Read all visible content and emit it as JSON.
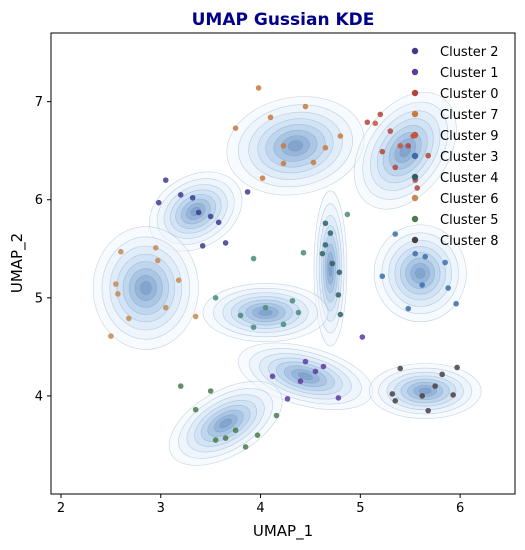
{
  "chart_data": {
    "type": "scatter",
    "title": "UMAP Gussian KDE",
    "xlabel": "UMAP_1",
    "ylabel": "UMAP_2",
    "xlim": [
      1.9,
      6.55
    ],
    "ylim": [
      3.0,
      7.7
    ],
    "xticks": [
      2,
      3,
      4,
      5,
      6
    ],
    "yticks": [
      4,
      5,
      6,
      7
    ],
    "legend_position": "top-right",
    "background_style": "gaussian kde density contours (blues)",
    "series": [
      {
        "name": "Cluster 2",
        "color": "#3d3b8e",
        "points": [
          [
            3.05,
            6.2
          ],
          [
            2.98,
            5.97
          ],
          [
            3.32,
            6.02
          ],
          [
            3.38,
            5.87
          ],
          [
            3.58,
            5.77
          ],
          [
            3.65,
            5.56
          ],
          [
            3.42,
            5.53
          ],
          [
            3.87,
            6.08
          ],
          [
            3.5,
            5.83
          ],
          [
            3.2,
            6.05
          ]
        ]
      },
      {
        "name": "Cluster 1",
        "color": "#5c3a9e",
        "points": [
          [
            4.12,
            4.2
          ],
          [
            4.45,
            4.35
          ],
          [
            4.63,
            4.3
          ],
          [
            4.78,
            3.98
          ],
          [
            5.02,
            4.6
          ],
          [
            4.27,
            3.97
          ],
          [
            4.4,
            4.15
          ],
          [
            4.55,
            4.25
          ]
        ]
      },
      {
        "name": "Cluster 0",
        "color": "#b2453a",
        "points": [
          [
            5.2,
            6.87
          ],
          [
            5.07,
            6.79
          ],
          [
            5.22,
            6.49
          ],
          [
            5.35,
            6.33
          ],
          [
            5.53,
            6.65
          ],
          [
            5.55,
            6.2
          ],
          [
            5.57,
            6.12
          ],
          [
            5.68,
            6.45
          ],
          [
            5.48,
            6.55
          ],
          [
            5.3,
            6.7
          ]
        ]
      },
      {
        "name": "Cluster 7",
        "color": "#c77a3e",
        "points": [
          [
            3.98,
            7.14
          ],
          [
            3.75,
            6.73
          ],
          [
            4.1,
            6.84
          ],
          [
            4.45,
            6.95
          ],
          [
            4.23,
            6.55
          ],
          [
            4.23,
            6.37
          ],
          [
            4.53,
            6.38
          ],
          [
            4.65,
            6.53
          ],
          [
            4.8,
            6.65
          ],
          [
            4.02,
            6.22
          ]
        ]
      },
      {
        "name": "Cluster 9",
        "color": "#c8553b",
        "points": [
          [
            5.15,
            6.78
          ],
          [
            5.55,
            6.45
          ],
          [
            5.4,
            6.55
          ]
        ]
      },
      {
        "name": "Cluster 3",
        "color": "#3b6ea8",
        "points": [
          [
            5.35,
            5.65
          ],
          [
            5.22,
            5.22
          ],
          [
            5.48,
            4.89
          ],
          [
            5.62,
            5.13
          ],
          [
            5.65,
            5.42
          ],
          [
            5.85,
            5.36
          ],
          [
            5.96,
            4.94
          ],
          [
            5.88,
            5.1
          ],
          [
            5.55,
            5.45
          ]
        ]
      },
      {
        "name": "Cluster 4",
        "color": "#2f5f64",
        "points": [
          [
            4.65,
            5.76
          ],
          [
            4.7,
            5.66
          ],
          [
            4.65,
            5.54
          ],
          [
            4.79,
            5.26
          ],
          [
            4.78,
            5.03
          ],
          [
            4.8,
            4.83
          ],
          [
            4.62,
            5.45
          ],
          [
            4.72,
            5.35
          ]
        ]
      },
      {
        "name": "Cluster 6",
        "color": "#c48a50",
        "points": [
          [
            2.6,
            5.47
          ],
          [
            2.95,
            5.51
          ],
          [
            2.97,
            5.38
          ],
          [
            3.18,
            5.18
          ],
          [
            2.55,
            5.14
          ],
          [
            2.57,
            5.04
          ],
          [
            2.68,
            4.79
          ],
          [
            2.5,
            4.61
          ],
          [
            3.05,
            4.9
          ],
          [
            3.35,
            4.81
          ]
        ]
      },
      {
        "name": "Cluster 5",
        "color": "#4a7a4a",
        "points": [
          [
            3.2,
            4.1
          ],
          [
            3.35,
            3.86
          ],
          [
            3.55,
            3.55
          ],
          [
            3.65,
            3.57
          ],
          [
            3.97,
            3.6
          ],
          [
            3.85,
            3.48
          ],
          [
            4.16,
            3.8
          ],
          [
            3.5,
            4.05
          ],
          [
            3.75,
            3.65
          ]
        ]
      },
      {
        "name": "Cluster 8",
        "color": "#4a403f",
        "points": [
          [
            5.32,
            4.02
          ],
          [
            5.35,
            3.95
          ],
          [
            5.68,
            3.85
          ],
          [
            5.62,
            4.0
          ],
          [
            5.82,
            4.22
          ],
          [
            5.93,
            4.01
          ],
          [
            5.97,
            4.29
          ],
          [
            5.4,
            4.28
          ],
          [
            5.75,
            4.1
          ]
        ]
      },
      {
        "name": "",
        "color": "#4a8a7a",
        "points": [
          [
            3.55,
            5.0
          ],
          [
            3.8,
            4.82
          ],
          [
            3.93,
            4.7
          ],
          [
            4.23,
            4.73
          ],
          [
            4.32,
            4.97
          ],
          [
            3.93,
            5.4
          ],
          [
            4.43,
            5.46
          ],
          [
            4.87,
            5.85
          ],
          [
            4.38,
            4.85
          ],
          [
            4.05,
            4.9
          ]
        ]
      }
    ],
    "kde_blobs": [
      {
        "center": [
          3.35,
          5.88
        ],
        "spread": [
          0.3,
          0.22
        ],
        "angle": -30
      },
      {
        "center": [
          2.85,
          5.1
        ],
        "spread": [
          0.32,
          0.38
        ],
        "angle": 0
      },
      {
        "center": [
          4.35,
          6.55
        ],
        "spread": [
          0.42,
          0.3
        ],
        "angle": -10
      },
      {
        "center": [
          5.45,
          6.5
        ],
        "spread": [
          0.26,
          0.4
        ],
        "angle": 35
      },
      {
        "center": [
          5.6,
          5.25
        ],
        "spread": [
          0.28,
          0.3
        ],
        "angle": 0
      },
      {
        "center": [
          4.7,
          5.3
        ],
        "spread": [
          0.1,
          0.48
        ],
        "angle": 0
      },
      {
        "center": [
          4.05,
          4.85
        ],
        "spread": [
          0.38,
          0.18
        ],
        "angle": 0
      },
      {
        "center": [
          4.45,
          4.2
        ],
        "spread": [
          0.42,
          0.18
        ],
        "angle": 15
      },
      {
        "center": [
          3.65,
          3.72
        ],
        "spread": [
          0.38,
          0.2
        ],
        "angle": -30
      },
      {
        "center": [
          5.65,
          4.05
        ],
        "spread": [
          0.34,
          0.17
        ],
        "angle": 0
      }
    ]
  }
}
